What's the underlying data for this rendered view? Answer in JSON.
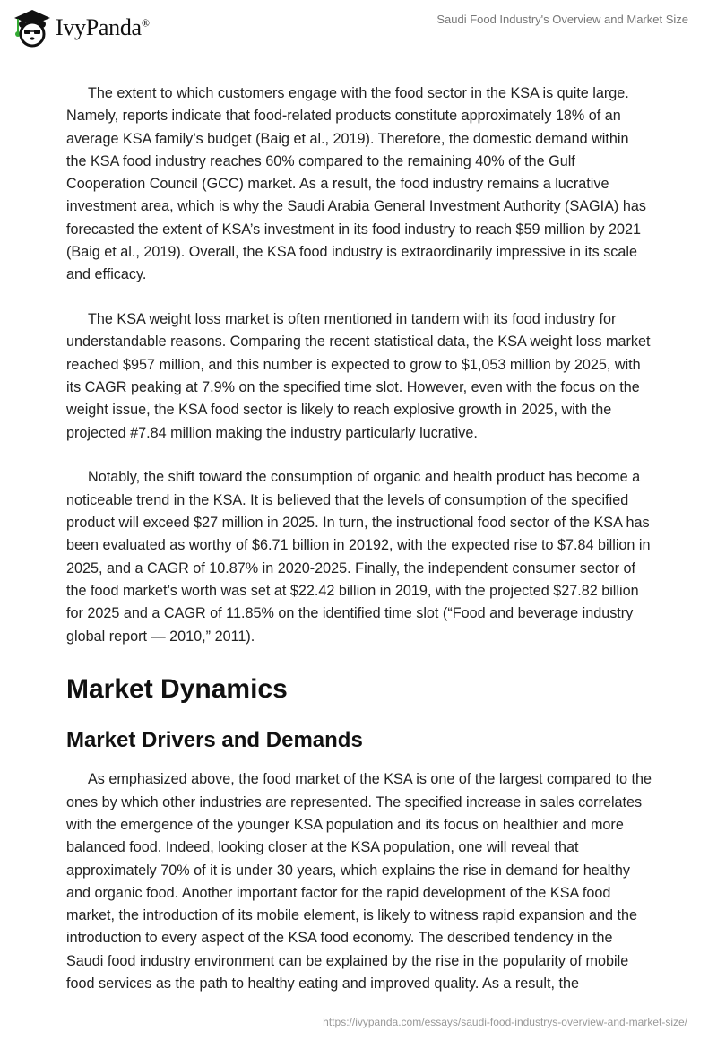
{
  "header": {
    "logo_text": "IvyPanda",
    "logo_mark": "®",
    "doc_title": "Saudi Food Industry's Overview and Market Size"
  },
  "body": {
    "paragraphs_top": [
      "The extent to which customers engage with the food sector in the KSA is quite large. Namely, reports indicate that food-related products constitute approximately 18% of an average KSA family’s budget (Baig et al., 2019). Therefore, the domestic demand within the KSA food industry reaches 60% compared to the remaining 40% of the Gulf Cooperation Council (GCC) market. As a result, the food industry remains a lucrative investment area, which is why the Saudi Arabia General Investment Authority (SAGIA) has forecasted the extent of KSA’s investment in its food industry to reach $59 million by 2021 (Baig et al., 2019). Overall, the KSA food industry is extraordinarily impressive in its scale and efficacy.",
      "The KSA weight loss market is often mentioned in tandem with its food industry for understandable reasons. Comparing the recent statistical data, the KSA weight loss market reached $957 million, and this number is expected to grow to $1,053 million by 2025, with its CAGR peaking at 7.9% on the specified time slot. However, even with the focus on the weight issue, the KSA food sector is likely to reach explosive growth in 2025, with the projected #7.84 million making the industry particularly lucrative.",
      "Notably, the shift toward the consumption of organic and health product has become a noticeable trend in the KSA. It is believed that the levels of consumption of the specified product will exceed $27 million in 2025. In turn, the instructional food sector of the KSA has been evaluated as worthy of $6.71 billion in 20192, with the expected rise to $7.84 billion in 2025, and a CAGR of 10.87% in 2020-2025. Finally, the independent consumer sector of the food market’s worth was set at $22.42 billion in 2019, with the projected $27.82 billion for 2025 and a CAGR of 11.85% on the identified time slot (“Food and beverage industry global report — 2010,” 2011)."
    ],
    "heading_1": "Market Dynamics",
    "heading_2": "Market Drivers and Demands",
    "paragraph_bottom": "As emphasized above, the food market of the KSA is one of the largest compared to the ones by which other industries are represented. The specified increase in sales correlates with the emergence of the younger KSA population and its focus on healthier and more balanced food. Indeed, looking closer at the KSA population, one will reveal that approximately 70% of it is under 30 years, which explains the rise in demand for healthy and organic food. Another important factor for the rapid development of the KSA food market, the introduction of its mobile element, is likely to witness rapid expansion and the introduction to every aspect of the KSA food economy. The described tendency in the Saudi food industry environment can be explained by the rise in the popularity of mobile food services as the path to healthy eating and improved quality. As a result, the"
  },
  "footer": {
    "url": "https://ivypanda.com/essays/saudi-food-industrys-overview-and-market-size/"
  }
}
